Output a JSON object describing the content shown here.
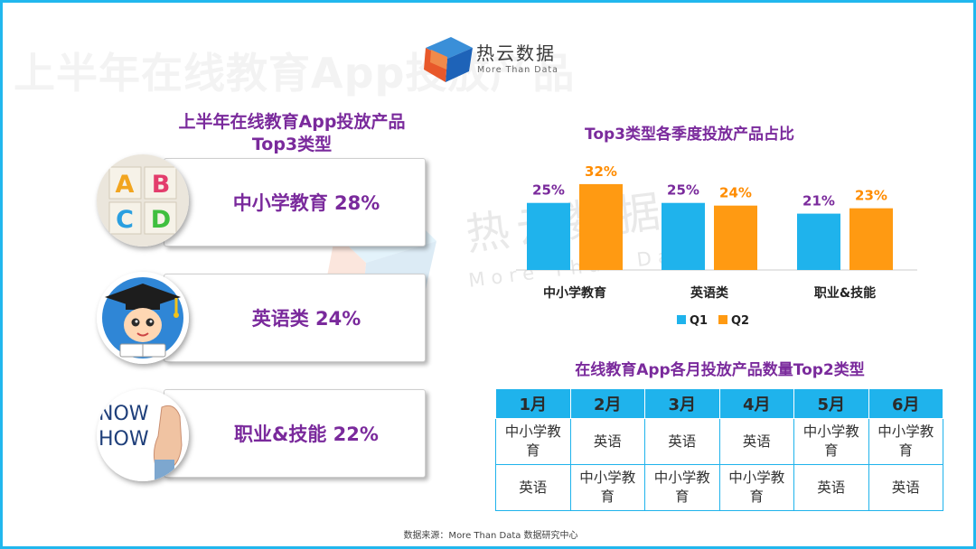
{
  "logo": {
    "name": "热云数据",
    "tagline": "More Than Data"
  },
  "background_title": "上半年在线教育App投放产品",
  "watermark": {
    "name": "热云数据",
    "tagline": "More Than Data"
  },
  "left_panel": {
    "title_line1": "上半年在线教育App投放产品",
    "title_line2": "Top3类型",
    "items": [
      {
        "label": "中小学教育 28%",
        "icon": "abcd-blocks-icon",
        "category": "中小学教育",
        "share_pct": 28
      },
      {
        "label": "英语类 24%",
        "icon": "graduate-student-icon",
        "category": "英语类",
        "share_pct": 24
      },
      {
        "label": "职业&技能 22%",
        "icon": "now-how-hand-icon",
        "category": "职业&技能",
        "share_pct": 22
      }
    ],
    "icon_texts": {
      "blocks": [
        "A",
        "B",
        "C",
        "D"
      ],
      "hand": [
        "NOW",
        "HOW"
      ]
    }
  },
  "chart_data": {
    "type": "bar",
    "title": "Top3类型各季度投放产品占比",
    "categories": [
      "中小学教育",
      "英语类",
      "职业&技能"
    ],
    "series": [
      {
        "name": "Q1",
        "values": [
          25,
          25,
          21
        ],
        "labels": [
          "25%",
          "25%",
          "21%"
        ],
        "color": "#1fb3ec",
        "label_color": "#7a2a9c"
      },
      {
        "name": "Q2",
        "values": [
          32,
          24,
          23
        ],
        "labels": [
          "32%",
          "24%",
          "23%"
        ],
        "color": "#ff9a12",
        "label_color": "#ff8c00"
      }
    ],
    "ylim": [
      0,
      35
    ],
    "xlabel": "",
    "ylabel": "",
    "grid": false,
    "legend": "bottom"
  },
  "table": {
    "title": "在线教育App各月投放产品数量Top2类型",
    "headers": [
      "1月",
      "2月",
      "3月",
      "4月",
      "5月",
      "6月"
    ],
    "rows": [
      [
        "中小学教育",
        "英语",
        "英语",
        "英语",
        "中小学教育",
        "中小学教育"
      ],
      [
        "英语",
        "中小学教育",
        "中小学教育",
        "中小学教育",
        "英语",
        "英语"
      ]
    ]
  },
  "source": "数据来源：More Than Data 数据研究中心",
  "colors": {
    "frame": "#21b7ee",
    "title_purple": "#7a2a9c",
    "q1_blue": "#1fb3ec",
    "q2_orange": "#ff9a12"
  }
}
